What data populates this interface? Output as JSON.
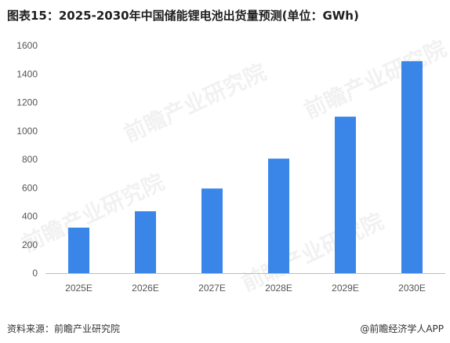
{
  "title": "图表15：2025-2030年中国储能锂电池出货量预测(单位：GWh)",
  "source": "资料来源：前瞻产业研究院",
  "credit": "@前瞻经济学人APP",
  "watermark": "前瞻产业研究院",
  "colors": {
    "bar": "#3a86e8",
    "axis": "#bdbdbd"
  },
  "chart_data": {
    "type": "bar",
    "title": "图表15：2025-2030年中国储能锂电池出货量预测(单位：GWh)",
    "categories": [
      "2025E",
      "2026E",
      "2027E",
      "2028E",
      "2029E",
      "2030E"
    ],
    "values": [
      320,
      435,
      595,
      805,
      1100,
      1490
    ],
    "ylim": [
      0,
      1600
    ],
    "yticks": [
      0,
      200,
      400,
      600,
      800,
      1000,
      1200,
      1400,
      1600
    ],
    "xlabel": "",
    "ylabel": "",
    "grid": false,
    "legend": "none"
  }
}
